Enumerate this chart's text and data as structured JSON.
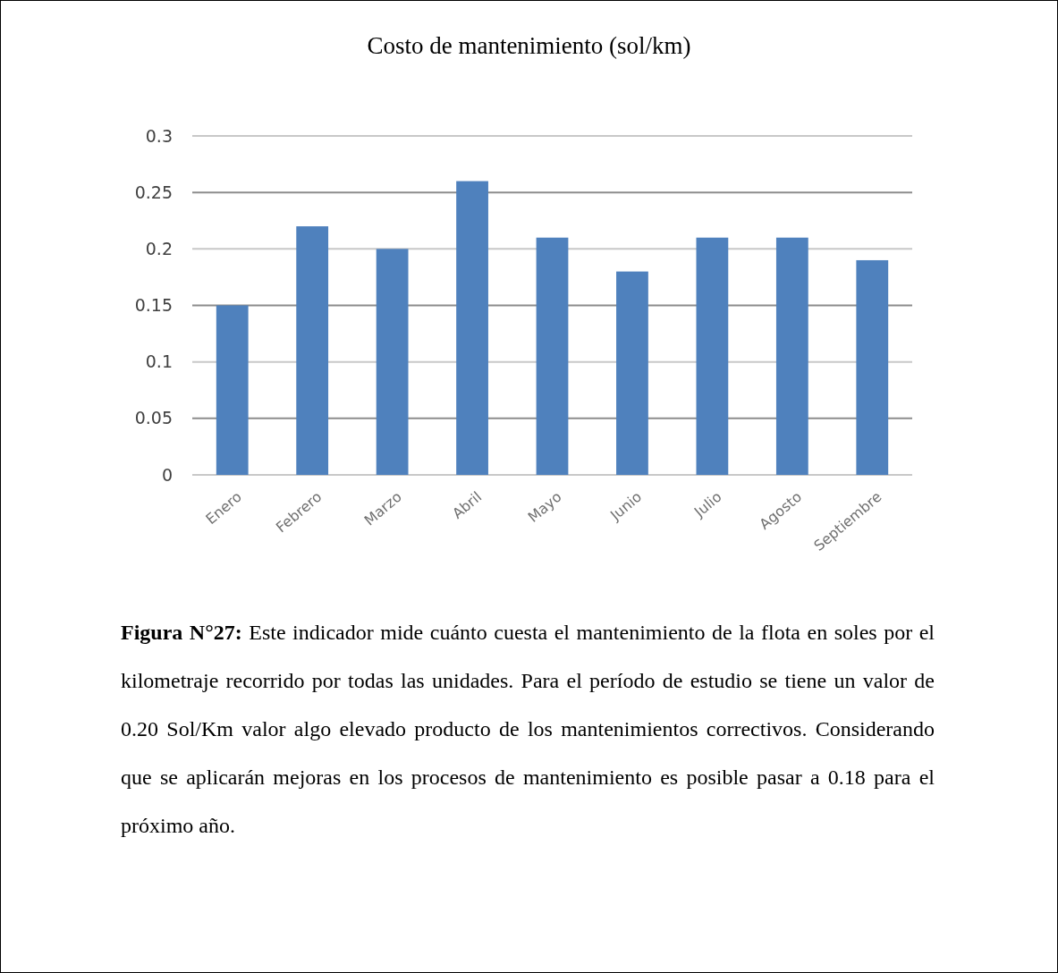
{
  "chart_data": {
    "type": "bar",
    "title": "Costo de mantenimiento (sol/km)",
    "categories": [
      "Enero",
      "Febrero",
      "Marzo",
      "Abril",
      "Mayo",
      "Junio",
      "Julio",
      "Agosto",
      "Septiembre"
    ],
    "values": [
      0.15,
      0.22,
      0.2,
      0.26,
      0.21,
      0.18,
      0.21,
      0.21,
      0.19
    ],
    "color": "#4f81bd",
    "ylim": [
      0,
      0.3
    ],
    "yticks": [
      0,
      0.05,
      0.1,
      0.15,
      0.2,
      0.25,
      0.3
    ],
    "grid": "y",
    "annotations": [
      "Figura N°27:",
      "Este indicador mide cuánto cuesta el mantenimiento de la flota en soles por el kilometraje recorrido por todas las unidades. Para el período de estudio se tiene un valor de 0.20 Sol/Km valor algo elevado producto de los mantenimientos correctivos. Considerando que se aplicarán mejoras en los procesos de mantenimiento es posible pasar a 0.18 para el próximo año."
    ]
  }
}
